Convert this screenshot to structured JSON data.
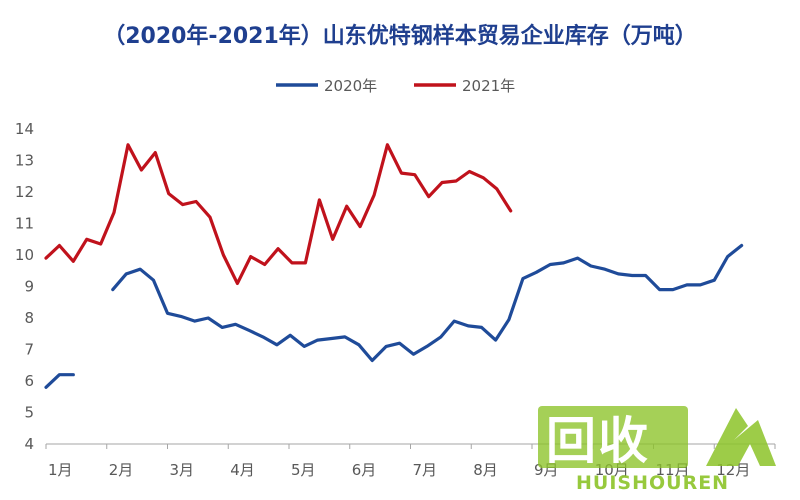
{
  "chart_data": {
    "type": "line",
    "title": "（2020年-2021年）山东优特钢样本贸易企业库存（万吨）",
    "xlabel": "",
    "ylabel": "",
    "ylim": [
      4,
      14
    ],
    "yticks": [
      4,
      5,
      6,
      7,
      8,
      9,
      10,
      11,
      12,
      13,
      14
    ],
    "x_month_range": [
      1,
      13
    ],
    "xtick_labels": [
      "1月",
      "2月",
      "3月",
      "4月",
      "5月",
      "6月",
      "7月",
      "8月",
      "9月",
      "10月",
      "11月",
      "12月"
    ],
    "legend_position": "top-center",
    "series": [
      {
        "name": "2020年",
        "color": "#1f4b99",
        "segments": [
          [
            [
              1.0,
              5.8
            ],
            [
              1.22,
              6.2
            ],
            [
              1.45,
              6.2
            ]
          ],
          [
            [
              2.1,
              8.9
            ],
            [
              2.32,
              9.4
            ],
            [
              2.55,
              9.55
            ],
            [
              2.77,
              9.2
            ],
            [
              3.0,
              8.15
            ],
            [
              3.22,
              8.05
            ],
            [
              3.45,
              7.9
            ],
            [
              3.67,
              8.0
            ],
            [
              3.9,
              7.7
            ],
            [
              4.12,
              7.8
            ],
            [
              4.35,
              7.6
            ],
            [
              4.57,
              7.4
            ],
            [
              4.8,
              7.15
            ],
            [
              5.02,
              7.45
            ],
            [
              5.25,
              7.1
            ],
            [
              5.47,
              7.3
            ],
            [
              5.7,
              7.35
            ],
            [
              5.92,
              7.4
            ],
            [
              6.15,
              7.15
            ],
            [
              6.37,
              6.65
            ],
            [
              6.6,
              7.1
            ],
            [
              6.82,
              7.2
            ],
            [
              7.05,
              6.85
            ],
            [
              7.27,
              7.1
            ],
            [
              7.5,
              7.4
            ],
            [
              7.72,
              7.9
            ],
            [
              7.95,
              7.75
            ],
            [
              8.17,
              7.7
            ],
            [
              8.4,
              7.3
            ],
            [
              8.62,
              7.95
            ],
            [
              8.85,
              9.25
            ],
            [
              9.07,
              9.45
            ],
            [
              9.3,
              9.7
            ],
            [
              9.52,
              9.75
            ],
            [
              9.75,
              9.9
            ],
            [
              9.97,
              9.65
            ],
            [
              10.2,
              9.55
            ],
            [
              10.42,
              9.4
            ],
            [
              10.65,
              9.35
            ],
            [
              10.87,
              9.35
            ],
            [
              11.1,
              8.9
            ],
            [
              11.32,
              8.9
            ],
            [
              11.55,
              9.05
            ],
            [
              11.77,
              9.05
            ],
            [
              12.0,
              9.2
            ],
            [
              12.22,
              9.95
            ],
            [
              12.45,
              10.3
            ]
          ]
        ]
      },
      {
        "name": "2021年",
        "color": "#c0121c",
        "segments": [
          [
            [
              1.0,
              9.9
            ],
            [
              1.22,
              10.3
            ],
            [
              1.45,
              9.8
            ],
            [
              1.67,
              10.5
            ],
            [
              1.9,
              10.35
            ],
            [
              2.12,
              11.35
            ],
            [
              2.35,
              13.5
            ],
            [
              2.57,
              12.7
            ],
            [
              2.8,
              13.25
            ],
            [
              3.02,
              11.95
            ],
            [
              3.25,
              11.6
            ],
            [
              3.47,
              11.7
            ],
            [
              3.7,
              11.2
            ],
            [
              3.92,
              10.0
            ],
            [
              4.15,
              9.1
            ],
            [
              4.37,
              9.95
            ],
            [
              4.6,
              9.7
            ],
            [
              4.82,
              10.2
            ],
            [
              5.05,
              9.75
            ],
            [
              5.27,
              9.75
            ],
            [
              5.5,
              11.75
            ],
            [
              5.72,
              10.5
            ],
            [
              5.95,
              11.55
            ],
            [
              6.17,
              10.9
            ],
            [
              6.4,
              11.9
            ],
            [
              6.62,
              13.5
            ],
            [
              6.85,
              12.6
            ],
            [
              7.07,
              12.55
            ],
            [
              7.3,
              11.85
            ],
            [
              7.52,
              12.3
            ],
            [
              7.75,
              12.35
            ],
            [
              7.97,
              12.65
            ],
            [
              8.2,
              12.45
            ],
            [
              8.42,
              12.1
            ],
            [
              8.65,
              11.4
            ]
          ]
        ]
      }
    ]
  },
  "watermark": {
    "main_text": "回收",
    "sub_text": "HUISHOUREN"
  }
}
